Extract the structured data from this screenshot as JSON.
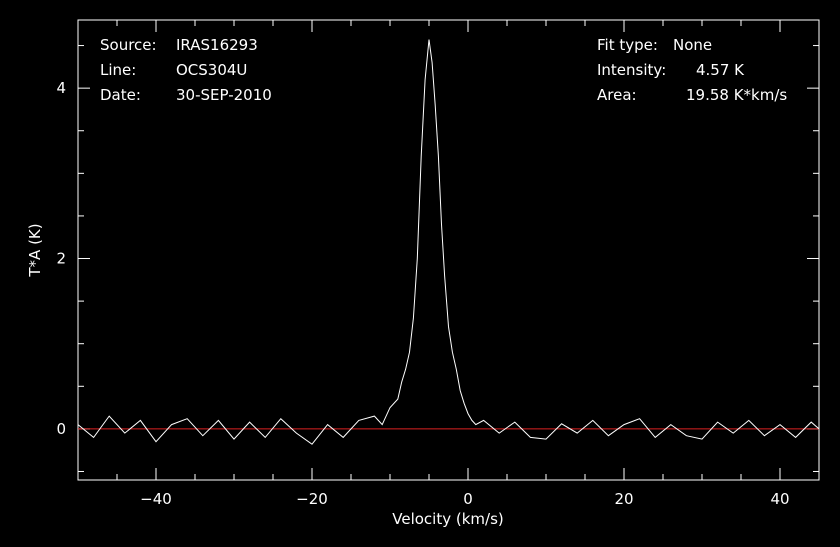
{
  "header_left": [
    {
      "key": "Source:",
      "value": "IRAS16293"
    },
    {
      "key": "Line:",
      "value": "OCS304U"
    },
    {
      "key": "Date:",
      "value": "30-SEP-2010"
    }
  ],
  "header_right": [
    {
      "key": "Fit type:",
      "value": "None"
    },
    {
      "key": "Intensity:",
      "value": "4.57 K"
    },
    {
      "key": "Area:",
      "value": "19.58 K*km/s"
    }
  ],
  "colors": {
    "background": "#000000",
    "spectrum": "#ffffff",
    "baseline": "#dd2222",
    "axes": "#ffffff"
  },
  "chart_data": {
    "type": "line",
    "title": "",
    "xlabel": "Velocity (km/s)",
    "ylabel": "T*A (K)",
    "xlim": [
      -50,
      45
    ],
    "ylim": [
      -0.6,
      4.8
    ],
    "x_ticks": [
      -40,
      -20,
      0,
      20,
      40
    ],
    "x_tick_labels": [
      "−40",
      "−20",
      "0",
      "20",
      "40"
    ],
    "y_ticks": [
      0,
      2,
      4
    ],
    "y_tick_labels": [
      "0",
      "2",
      "4"
    ],
    "grid": false,
    "baseline_y": 0,
    "peak": {
      "x": -4.9,
      "y": 4.57
    },
    "series": [
      {
        "x": [
          -50,
          -48,
          -46,
          -44,
          -42,
          -40,
          -38,
          -36,
          -34,
          -32,
          -30,
          -28,
          -26,
          -24,
          -22,
          -20,
          -18,
          -16,
          -14,
          -12,
          -11,
          -10,
          -9,
          -8.5,
          -8,
          -7.5,
          -7,
          -6.5,
          -6,
          -5.5,
          -5,
          -4.6,
          -4.2,
          -3.8,
          -3.4,
          -3,
          -2.5,
          -2,
          -1.5,
          -1,
          -0.5,
          0,
          0.5,
          1,
          2,
          4,
          6,
          8,
          10,
          12,
          14,
          16,
          18,
          20,
          22,
          24,
          26,
          28,
          30,
          32,
          34,
          36,
          38,
          40,
          42,
          44,
          45
        ],
        "y": [
          0.05,
          -0.1,
          0.15,
          -0.05,
          0.1,
          -0.15,
          0.05,
          0.12,
          -0.08,
          0.1,
          -0.12,
          0.08,
          -0.1,
          0.12,
          -0.05,
          -0.18,
          0.05,
          -0.1,
          0.1,
          0.15,
          0.05,
          0.25,
          0.35,
          0.55,
          0.7,
          0.9,
          1.3,
          2.0,
          3.2,
          4.1,
          4.57,
          4.3,
          3.8,
          3.2,
          2.4,
          1.8,
          1.2,
          0.9,
          0.7,
          0.45,
          0.3,
          0.18,
          0.1,
          0.05,
          0.1,
          -0.05,
          0.08,
          -0.1,
          -0.12,
          0.06,
          -0.05,
          0.1,
          -0.08,
          0.05,
          0.12,
          -0.1,
          0.05,
          -0.08,
          -0.12,
          0.08,
          -0.05,
          0.1,
          -0.08,
          0.05,
          -0.1,
          0.08,
          0.0
        ]
      }
    ]
  }
}
